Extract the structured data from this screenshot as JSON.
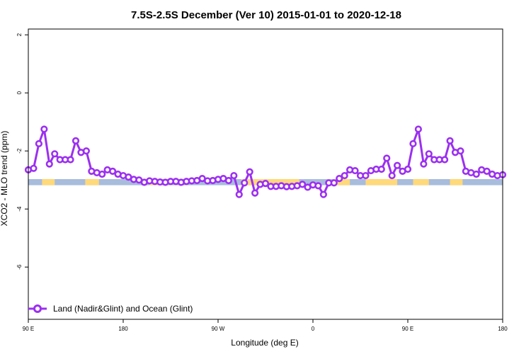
{
  "chart_data": {
    "type": "line",
    "title": "7.5S-2.5S December (Ver 10)   2015-01-01 to 2020-12-18",
    "xlabel": "Longitude (deg E)",
    "ylabel": "XCO2 - MLO trend (ppm)",
    "xlim": [
      90,
      540
    ],
    "ylim": [
      -7.8,
      2.2
    ],
    "x_ticks": [
      90,
      180,
      270,
      360,
      450,
      540
    ],
    "x_tick_labels": [
      "90 E",
      "180",
      "90 W",
      "0",
      "90 E",
      "180"
    ],
    "y_ticks": [
      2,
      0,
      -2,
      -4,
      -6
    ],
    "y_tick_labels": [
      "2",
      "0",
      "-2",
      "-4",
      "-6"
    ],
    "grid": false,
    "legend_position": "bottom-left",
    "colors": {
      "series": "#9b30f0",
      "ocean": "#a8bcdc",
      "land": "#ffd97a"
    },
    "map_band": {
      "y_range": [
        -3.18,
        -2.97
      ],
      "land_segments": [
        [
          103,
          115
        ],
        [
          144,
          157
        ],
        [
          205,
          215
        ],
        [
          292,
          347
        ],
        [
          380,
          395
        ],
        [
          410,
          440
        ],
        [
          455,
          470
        ],
        [
          490,
          502
        ]
      ]
    },
    "series": [
      {
        "name": "Land (Nadir&Glint) and Ocean (Glint)",
        "x": [
          90,
          95,
          100,
          105,
          110,
          115,
          120,
          125,
          130,
          135,
          140,
          145,
          150,
          155,
          160,
          165,
          170,
          175,
          180,
          185,
          190,
          195,
          200,
          205,
          210,
          215,
          220,
          225,
          230,
          235,
          240,
          245,
          250,
          255,
          260,
          265,
          270,
          275,
          280,
          285,
          290,
          295,
          300,
          305,
          310,
          315,
          320,
          325,
          330,
          335,
          340,
          345,
          350,
          355,
          360,
          365,
          370,
          375,
          380,
          385,
          390,
          395,
          400,
          405,
          410,
          415,
          420,
          425,
          430,
          435,
          440,
          445,
          450,
          455,
          460,
          465,
          470,
          475,
          480,
          485,
          490,
          495,
          500,
          505,
          510,
          515,
          520,
          525,
          530,
          535,
          540
        ],
        "values": [
          -2.65,
          -2.6,
          -1.75,
          -1.25,
          -2.45,
          -2.1,
          -2.3,
          -2.3,
          -2.3,
          -1.65,
          -2.05,
          -2.0,
          -2.7,
          -2.75,
          -2.8,
          -2.65,
          -2.7,
          -2.8,
          -2.85,
          -2.9,
          -2.98,
          -3.0,
          -3.08,
          -3.03,
          -3.05,
          -3.07,
          -3.08,
          -3.05,
          -3.05,
          -3.08,
          -3.05,
          -3.03,
          -3.02,
          -2.95,
          -3.03,
          -3.02,
          -2.98,
          -2.95,
          -3.02,
          -2.85,
          -3.5,
          -3.1,
          -2.72,
          -3.45,
          -3.15,
          -3.12,
          -3.22,
          -3.22,
          -3.2,
          -3.23,
          -3.22,
          -3.2,
          -3.15,
          -3.25,
          -3.17,
          -3.2,
          -3.5,
          -3.1,
          -3.1,
          -2.95,
          -2.85,
          -2.65,
          -2.68,
          -2.85,
          -2.85,
          -2.68,
          -2.63,
          -2.63,
          -2.25,
          -2.85,
          -2.5,
          -2.7,
          -2.63,
          -1.75,
          -1.25,
          -2.45,
          -2.1,
          -2.3,
          -2.3,
          -2.3,
          -1.65,
          -2.05,
          -2.0,
          -2.7,
          -2.75,
          -2.8,
          -2.65,
          -2.7,
          -2.8,
          -2.85,
          -2.82
        ]
      }
    ]
  }
}
